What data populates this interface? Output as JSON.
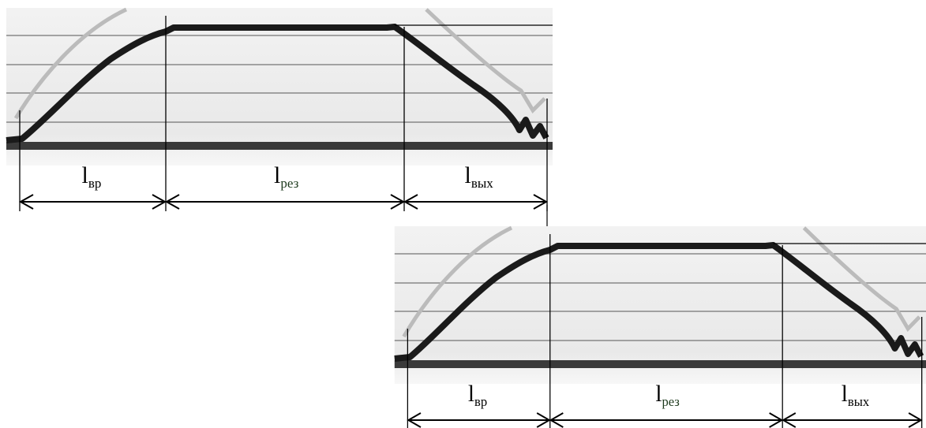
{
  "panels": [
    {
      "labels": [
        {
          "symbol": "l",
          "subscript": "вр"
        },
        {
          "symbol": "l",
          "subscript": "рез"
        },
        {
          "symbol": "l",
          "subscript": "вых"
        }
      ]
    },
    {
      "labels": [
        {
          "symbol": "l",
          "subscript": "вр"
        },
        {
          "symbol": "l",
          "subscript": "рез"
        },
        {
          "symbol": "l",
          "subscript": "вых"
        }
      ]
    }
  ]
}
